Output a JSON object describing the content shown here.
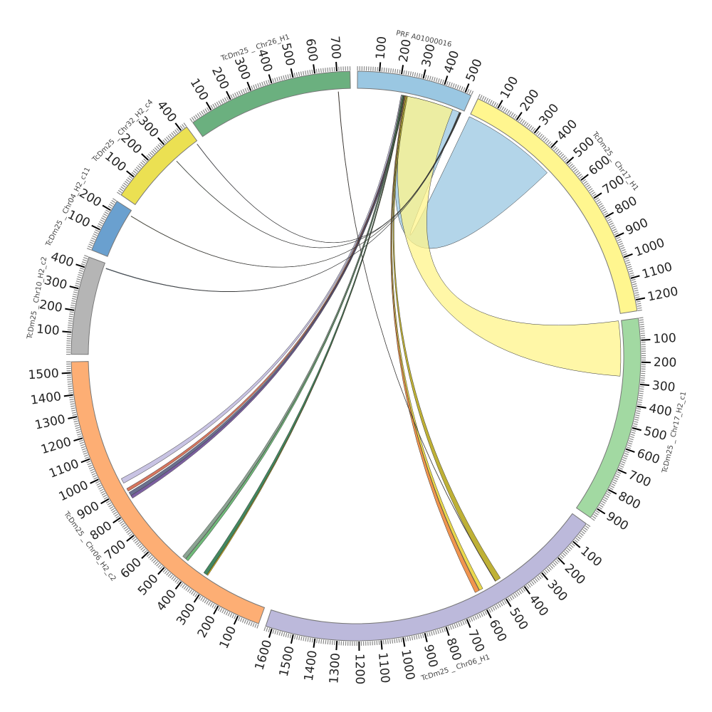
{
  "chart_data": {
    "type": "chord",
    "tick_interval": 100,
    "minor_tick_interval": 10,
    "segments": [
      {
        "name": "PRFA01000016",
        "length": 530,
        "color": "#9ac7e2"
      },
      {
        "name": "TcDm25_Chr17_H1",
        "length": 1250,
        "color": "#fff68f"
      },
      {
        "name": "TcDm25_Chr17_H2_c1",
        "length": 950,
        "color": "#a2d9a2"
      },
      {
        "name": "TcDm25_Chr06_H1",
        "length": 1630,
        "color": "#bcb9db"
      },
      {
        "name": "TcDm25_Chr06_H2_c2",
        "length": 1550,
        "color": "#fdae74"
      },
      {
        "name": "TcDm25_Chr10_H2_c2",
        "length": 450,
        "color": "#b5b5b5"
      },
      {
        "name": "TcDm25_Chr04_H2_c11",
        "length": 250,
        "color": "#6aa0cf"
      },
      {
        "name": "TcDm25_Chr32_H2_c4",
        "length": 430,
        "color": "#ebe052"
      },
      {
        "name": "TcDm25_Chr26_H1",
        "length": 760,
        "color": "#6bb07f"
      }
    ],
    "links": [
      {
        "source": [
          "PRFA01000016",
          235,
          510
        ],
        "target": [
          "TcDm25_Chr17_H1",
          0,
          470
        ],
        "color": "#9ac7e2"
      },
      {
        "source": [
          "PRFA01000016",
          235,
          475
        ],
        "target": [
          "TcDm25_Chr17_H2_c1",
          0,
          270
        ],
        "color": "#fff48a"
      },
      {
        "source": [
          "PRFA01000016",
          214,
          222
        ],
        "target": [
          "TcDm25_Chr06_H2_c2",
          930,
          955
        ],
        "color": "#c2bce0"
      },
      {
        "source": [
          "PRFA01000016",
          222,
          226
        ],
        "target": [
          "TcDm25_Chr06_H2_c2",
          885,
          900
        ],
        "color": "#d0664c"
      },
      {
        "source": [
          "PRFA01000016",
          226,
          234
        ],
        "target": [
          "TcDm25_Chr06_H2_c2",
          850,
          878
        ],
        "color": "#5a5f82"
      },
      {
        "source": [
          "PRFA01000016",
          224,
          228
        ],
        "target": [
          "TcDm25_Chr06_H2_c2",
          845,
          860
        ],
        "color": "#7c5ca3"
      },
      {
        "source": [
          "PRFA01000016",
          218,
          222
        ],
        "target": [
          "TcDm25_Chr06_H2_c2",
          452,
          470
        ],
        "color": "#7f9a87"
      },
      {
        "source": [
          "PRFA01000016",
          222,
          226
        ],
        "target": [
          "TcDm25_Chr06_H2_c2",
          436,
          450
        ],
        "color": "#5fb36a"
      },
      {
        "source": [
          "PRFA01000016",
          226,
          230
        ],
        "target": [
          "TcDm25_Chr06_H2_c2",
          322,
          340
        ],
        "color": "#2e7a4f"
      },
      {
        "source": [
          "PRFA01000016",
          229,
          231
        ],
        "target": [
          "TcDm25_Chr06_H2_c2",
          316,
          321
        ],
        "color": "#d8b800"
      },
      {
        "source": [
          "PRFA01000016",
          232,
          236
        ],
        "target": [
          "TcDm25_Chr06_H1",
          590,
          612
        ],
        "color": "#f08a3c"
      },
      {
        "source": [
          "PRFA01000016",
          236,
          240
        ],
        "target": [
          "TcDm25_Chr06_H1",
          570,
          588
        ],
        "color": "#e8d43a"
      },
      {
        "source": [
          "PRFA01000016",
          240,
          246
        ],
        "target": [
          "TcDm25_Chr06_H1",
          470,
          500
        ],
        "color": "#b8a820"
      },
      {
        "source": [
          "PRFA01000016",
          512,
          514
        ],
        "target": [
          "TcDm25_Chr32_H2_c4",
          420,
          422
        ],
        "color": "#555577"
      },
      {
        "source": [
          "PRFA01000016",
          514,
          516
        ],
        "target": [
          "TcDm25_Chr32_H2_c4",
          290,
          292
        ],
        "color": "#4a6a4a"
      },
      {
        "source": [
          "PRFA01000016",
          516,
          518
        ],
        "target": [
          "TcDm25_Chr04_H2_c11",
          225,
          227
        ],
        "color": "#807a30"
      },
      {
        "source": [
          "PRFA01000016",
          518,
          520
        ],
        "target": [
          "TcDm25_Chr10_H2_c2",
          425,
          428
        ],
        "color": "#4a6a88"
      },
      {
        "source": [
          "TcDm25_Chr26_H1",
          700,
          702
        ],
        "target": [
          "TcDm25_Chr06_H1",
          498,
          500
        ],
        "color": "#8a5020"
      }
    ]
  }
}
